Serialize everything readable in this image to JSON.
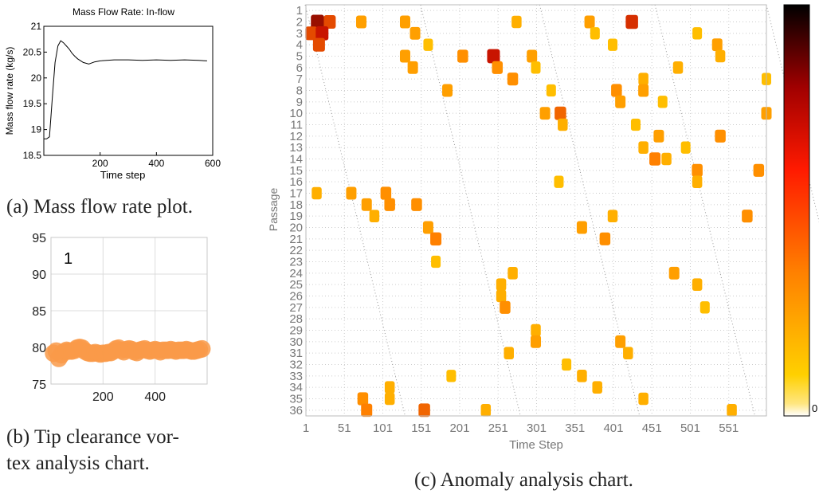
{
  "captions": {
    "a": "(a) Mass flow rate plot.",
    "b_line1": "(b) Tip clearance vor-",
    "b_line2": "tex analysis chart.",
    "c": "(c) Anomaly analysis chart."
  },
  "colors": {
    "heat_low": "#ffd000",
    "heat_mid": "#ff8000",
    "heat_high": "#000000",
    "tip_marker": "#f99a49"
  },
  "chart_data": [
    {
      "id": "mass-flow",
      "type": "line",
      "title": "Mass Flow Rate: In-flow",
      "xlabel": "Time step",
      "ylabel": "Mass flow rate (kg/s)",
      "xlim": [
        0,
        600
      ],
      "ylim": [
        18.5,
        21
      ],
      "xticks": [
        200,
        400,
        600
      ],
      "yticks": [
        18.5,
        19,
        19.5,
        20,
        20.5,
        21
      ],
      "x": [
        0,
        10,
        20,
        30,
        40,
        50,
        60,
        70,
        80,
        90,
        100,
        110,
        120,
        140,
        160,
        180,
        200,
        250,
        300,
        350,
        400,
        450,
        500,
        550,
        580
      ],
      "y": [
        18.82,
        18.82,
        18.86,
        19.6,
        20.3,
        20.62,
        20.72,
        20.68,
        20.62,
        20.56,
        20.48,
        20.42,
        20.37,
        20.3,
        20.27,
        20.31,
        20.33,
        20.35,
        20.35,
        20.34,
        20.35,
        20.34,
        20.35,
        20.34,
        20.33
      ]
    },
    {
      "id": "tip-clearance",
      "type": "scatter",
      "annotation": "1",
      "xlim": [
        0,
        600
      ],
      "ylim": [
        75,
        95
      ],
      "xticks": [
        200,
        400
      ],
      "yticks": [
        75,
        80,
        85,
        90,
        95
      ],
      "x": [
        10,
        20,
        30,
        40,
        50,
        60,
        70,
        80,
        90,
        100,
        110,
        120,
        130,
        140,
        150,
        160,
        170,
        180,
        190,
        200,
        210,
        220,
        230,
        240,
        250,
        260,
        270,
        280,
        290,
        300,
        310,
        320,
        330,
        340,
        350,
        360,
        370,
        380,
        390,
        400,
        410,
        420,
        430,
        440,
        450,
        460,
        470,
        480,
        490,
        500,
        510,
        520,
        530,
        540,
        550,
        560,
        570,
        580
      ],
      "y": [
        79.2,
        79.5,
        78.5,
        79.0,
        79.4,
        79.6,
        79.5,
        79.5,
        79.6,
        79.9,
        80.0,
        79.9,
        79.5,
        79.3,
        79.2,
        79.2,
        79.3,
        79.2,
        79.1,
        79.2,
        79.2,
        79.3,
        79.3,
        79.5,
        79.8,
        79.9,
        79.6,
        79.4,
        79.7,
        79.8,
        79.7,
        79.4,
        79.3,
        79.6,
        79.7,
        79.8,
        79.6,
        79.5,
        79.6,
        79.7,
        79.6,
        79.4,
        79.6,
        79.6,
        79.6,
        79.7,
        79.6,
        79.5,
        79.6,
        79.6,
        79.6,
        79.7,
        79.6,
        79.5,
        79.5,
        79.6,
        79.7,
        79.8
      ]
    },
    {
      "id": "anomaly",
      "type": "heatmap",
      "xlabel": "Time Step",
      "ylabel": "Passage",
      "xticks": [
        1,
        51,
        101,
        151,
        201,
        251,
        301,
        351,
        401,
        451,
        501,
        551
      ],
      "xlim": [
        1,
        600
      ],
      "yticks": [
        "1",
        "2",
        "3",
        "4",
        "5",
        "6",
        "7",
        "8",
        "9",
        "10",
        "11",
        "12",
        "13",
        "14",
        "15",
        "16",
        "17",
        "18",
        "19",
        "20",
        "21",
        "22",
        "23",
        "24",
        "25",
        "26",
        "27",
        "28",
        "29",
        "30",
        "31",
        "32",
        "33",
        "34",
        "35",
        "36"
      ],
      "colorbar_label": "0",
      "cells": [
        [
          2,
          16,
          0.85
        ],
        [
          2,
          32,
          0.7
        ],
        [
          2,
          73,
          0.5
        ],
        [
          2,
          130,
          0.5
        ],
        [
          2,
          275,
          0.45
        ],
        [
          2,
          370,
          0.5
        ],
        [
          2,
          425,
          0.75
        ],
        [
          3,
          8,
          0.7
        ],
        [
          3,
          22,
          0.8
        ],
        [
          3,
          143,
          0.5
        ],
        [
          3,
          377,
          0.4
        ],
        [
          3,
          510,
          0.4
        ],
        [
          4,
          18,
          0.7
        ],
        [
          4,
          160,
          0.4
        ],
        [
          4,
          400,
          0.4
        ],
        [
          4,
          536,
          0.5
        ],
        [
          5,
          130,
          0.5
        ],
        [
          5,
          205,
          0.55
        ],
        [
          5,
          245,
          0.8
        ],
        [
          5,
          295,
          0.5
        ],
        [
          5,
          540,
          0.45
        ],
        [
          6,
          140,
          0.5
        ],
        [
          6,
          250,
          0.55
        ],
        [
          6,
          300,
          0.4
        ],
        [
          6,
          485,
          0.45
        ],
        [
          7,
          270,
          0.55
        ],
        [
          7,
          440,
          0.45
        ],
        [
          7,
          600,
          0.4
        ],
        [
          8,
          185,
          0.5
        ],
        [
          8,
          320,
          0.4
        ],
        [
          8,
          405,
          0.55
        ],
        [
          8,
          440,
          0.5
        ],
        [
          9,
          410,
          0.5
        ],
        [
          9,
          465,
          0.4
        ],
        [
          10,
          312,
          0.5
        ],
        [
          10,
          332,
          0.65
        ],
        [
          10,
          600,
          0.5
        ],
        [
          11,
          335,
          0.45
        ],
        [
          11,
          430,
          0.4
        ],
        [
          12,
          460,
          0.5
        ],
        [
          12,
          540,
          0.55
        ],
        [
          13,
          440,
          0.45
        ],
        [
          13,
          495,
          0.4
        ],
        [
          14,
          455,
          0.6
        ],
        [
          14,
          470,
          0.45
        ],
        [
          15,
          510,
          0.55
        ],
        [
          15,
          590,
          0.55
        ],
        [
          16,
          330,
          0.4
        ],
        [
          16,
          510,
          0.45
        ],
        [
          17,
          60,
          0.5
        ],
        [
          17,
          105,
          0.55
        ],
        [
          17,
          15,
          0.45
        ],
        [
          18,
          80,
          0.5
        ],
        [
          18,
          110,
          0.55
        ],
        [
          18,
          145,
          0.55
        ],
        [
          19,
          90,
          0.45
        ],
        [
          19,
          400,
          0.45
        ],
        [
          19,
          575,
          0.55
        ],
        [
          20,
          160,
          0.5
        ],
        [
          20,
          360,
          0.5
        ],
        [
          21,
          170,
          0.6
        ],
        [
          21,
          390,
          0.55
        ],
        [
          23,
          170,
          0.4
        ],
        [
          24,
          270,
          0.45
        ],
        [
          24,
          480,
          0.5
        ],
        [
          25,
          255,
          0.45
        ],
        [
          25,
          510,
          0.45
        ],
        [
          26,
          255,
          0.45
        ],
        [
          27,
          260,
          0.55
        ],
        [
          27,
          520,
          0.4
        ],
        [
          29,
          300,
          0.45
        ],
        [
          30,
          300,
          0.5
        ],
        [
          30,
          410,
          0.5
        ],
        [
          31,
          265,
          0.45
        ],
        [
          31,
          420,
          0.45
        ],
        [
          32,
          340,
          0.4
        ],
        [
          33,
          190,
          0.4
        ],
        [
          33,
          360,
          0.45
        ],
        [
          34,
          110,
          0.45
        ],
        [
          34,
          380,
          0.45
        ],
        [
          35,
          75,
          0.55
        ],
        [
          35,
          110,
          0.45
        ],
        [
          35,
          440,
          0.45
        ],
        [
          36,
          80,
          0.6
        ],
        [
          36,
          155,
          0.65
        ],
        [
          36,
          235,
          0.45
        ],
        [
          36,
          555,
          0.45
        ]
      ]
    }
  ]
}
